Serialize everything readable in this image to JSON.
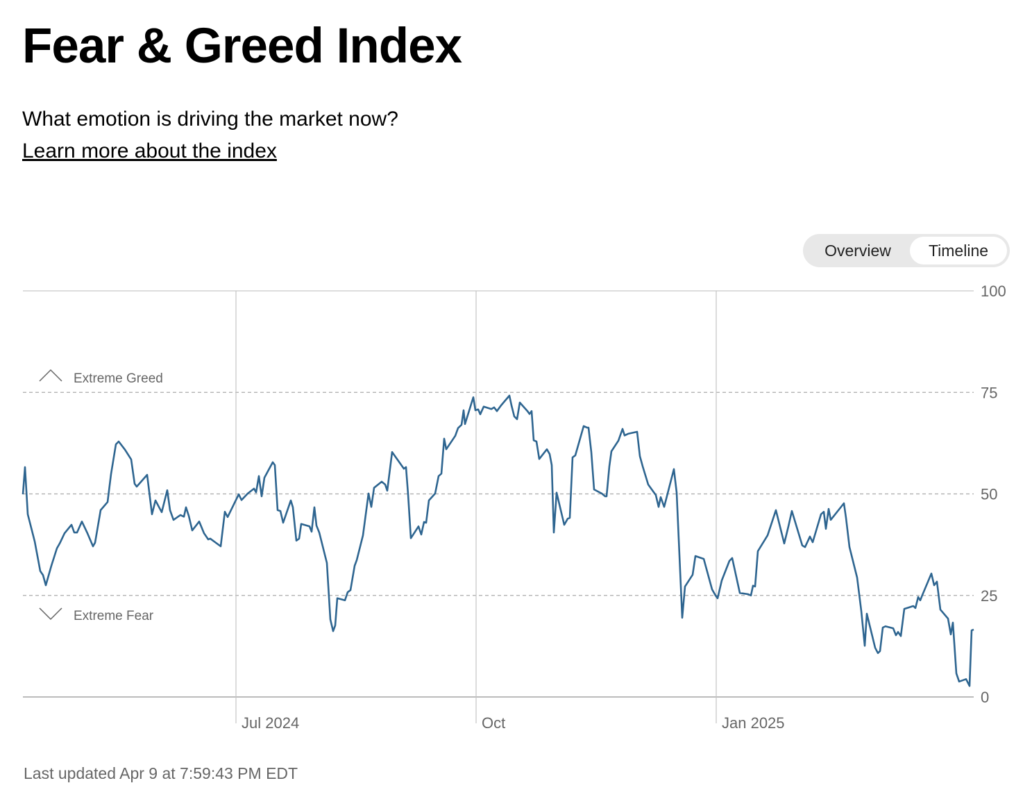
{
  "header": {
    "title": "Fear & Greed Index",
    "subtitle": "What emotion is driving the market now?",
    "link": "Learn more about the index"
  },
  "toggle": {
    "options": [
      "Overview",
      "Timeline"
    ]
  },
  "chart_data": {
    "type": "line",
    "color": "#2e6590",
    "x": [
      0,
      3,
      7,
      17,
      25,
      29,
      33,
      41,
      49,
      53,
      60,
      70,
      74,
      78,
      85,
      93,
      101,
      104,
      112,
      122,
      127,
      134,
      138,
      147,
      156,
      161,
      164,
      179,
      186,
      191,
      200,
      208,
      212,
      217,
      227,
      232,
      235,
      239,
      244,
      254,
      261,
      267,
      270,
      285,
      291,
      295,
      311,
      315,
      324,
      333,
      336,
      340,
      344,
      348,
      360,
      363,
      367,
      371,
      375,
      386,
      389,
      394,
      398,
      401,
      413,
      416,
      420,
      423,
      427,
      438,
      443,
      447,
      450,
      453,
      464,
      468,
      472,
      478,
      481,
      490,
      498,
      502,
      506,
      517,
      522,
      525,
      532,
      549,
      552,
      555,
      559,
      570,
      574,
      578,
      581,
      585,
      594,
      599,
      603,
      607,
      610,
      623,
      627,
      632,
      635,
      637,
      649,
      652,
      656,
      659,
      664,
      675,
      679,
      683,
      689,
      701,
      704,
      708,
      712,
      716,
      727,
      730,
      733,
      736,
      740,
      744,
      755,
      759,
      762,
      765,
      769,
      780,
      785,
      788,
      792,
      796,
      808,
      813,
      815,
      819,
      823,
      834,
      839,
      841,
      845,
      848,
      858,
      864,
      867,
      872,
      885,
      889,
      893,
      901,
      912,
      916,
      919,
      924,
      938,
      942,
      950,
      954,
      965,
      969,
      981,
      993,
      998,
      1001,
      1007,
      1018,
      1022,
      1033,
      1045,
      1049,
      1052,
      1055,
      1059,
      1073,
      1085,
      1097,
      1103,
      1108,
      1123,
      1127,
      1134,
      1138,
      1150,
      1154,
      1157,
      1161,
      1164,
      1183,
      1186,
      1191,
      1202,
      1208,
      1213,
      1216,
      1228,
      1232,
      1235,
      1239,
      1243,
      1254,
      1258,
      1261,
      1265,
      1270,
      1283,
      1286,
      1290,
      1293,
      1296,
      1309,
      1313,
      1317,
      1322,
      1333,
      1337,
      1340,
      1345,
      1349,
      1359,
      1364,
      1367,
      1370
    ],
    "values": [
      49.9,
      56.6,
      45,
      38.3,
      31,
      30,
      27.5,
      32.3,
      36.6,
      37.8,
      40.3,
      42.4,
      40.5,
      40.5,
      43.2,
      40.3,
      37.1,
      38,
      46,
      48,
      54.9,
      62.2,
      62.9,
      60.9,
      58.5,
      52.5,
      51.8,
      54.7,
      45,
      48.4,
      45.5,
      50.9,
      46,
      43.6,
      44.8,
      44.4,
      46.7,
      44.6,
      41,
      43.2,
      40.3,
      38.8,
      39,
      37.1,
      45.6,
      44.3,
      49.9,
      48.5,
      50.1,
      51.3,
      50.4,
      54.4,
      49.4,
      54,
      57.8,
      57.1,
      46,
      45.8,
      42.9,
      48.4,
      46.7,
      38.5,
      39,
      42.6,
      42,
      40.7,
      46.7,
      42.2,
      40.5,
      33,
      19.1,
      16.2,
      17.6,
      24.3,
      23.8,
      25.8,
      26.3,
      32.3,
      33.7,
      39.8,
      50.1,
      46.8,
      51.5,
      53,
      52.3,
      50.8,
      60.3,
      56.2,
      56.6,
      49.9,
      39.1,
      42,
      40,
      43.1,
      42.9,
      48.4,
      50.1,
      54.4,
      55,
      63.6,
      61,
      64.3,
      66.2,
      67,
      70.6,
      67.2,
      73.8,
      70.6,
      70.8,
      69.6,
      71.5,
      70.9,
      71.3,
      70.4,
      71.8,
      74.2,
      71.8,
      69.1,
      68.4,
      72.5,
      70.4,
      69.7,
      70.4,
      63.2,
      62.9,
      58.6,
      61,
      59.8,
      57.1,
      40.5,
      50.3,
      42.4,
      43.9,
      44.1,
      59,
      59.5,
      66.7,
      66.3,
      66.3,
      60.3,
      51.1,
      50.1,
      49.4,
      49.4,
      56.8,
      60.5,
      63.1,
      66,
      64.4,
      64.8,
      65.3,
      59.3,
      56.8,
      52.3,
      49.7,
      46.8,
      49.2,
      46.8,
      56.1,
      50.3,
      19.5,
      27.2,
      30.1,
      34.7,
      34,
      26.5,
      25,
      24.3,
      28.7,
      33.5,
      34.2,
      25.6,
      25.3,
      25,
      27.4,
      27.2,
      35.9,
      39.8,
      46,
      37.8,
      42,
      45.8,
      37.3,
      36.9,
      39.5,
      38.1,
      45,
      45.6,
      41.4,
      46.3,
      43.6,
      47.7,
      44.1,
      36.9,
      29.4,
      21.2,
      12.6,
      20.5,
      12.1,
      10.8,
      11.3,
      17.1,
      17.4,
      16.9,
      15.2,
      16,
      15,
      21.7,
      22.4,
      21.9,
      24.6,
      23.8,
      25.1,
      30.4,
      27.5,
      28.4,
      21.5,
      19.3,
      15.4,
      18.3,
      5.8,
      3.8,
      4.4,
      2.7,
      16.4,
      16.6
    ],
    "xlim": [
      0,
      1370
    ],
    "xticks": [
      {
        "value": 307,
        "label": "Jul 2024"
      },
      {
        "value": 653,
        "label": "Oct"
      },
      {
        "value": 999,
        "label": "Jan 2025"
      }
    ],
    "ylim": [
      0,
      100
    ],
    "yticks": [
      0,
      25,
      50,
      75,
      100
    ],
    "grid": true,
    "annotations": [
      "Extreme Greed",
      "Extreme Fear"
    ]
  },
  "footer": "Last updated Apr 9 at 7:59:43 PM EDT"
}
